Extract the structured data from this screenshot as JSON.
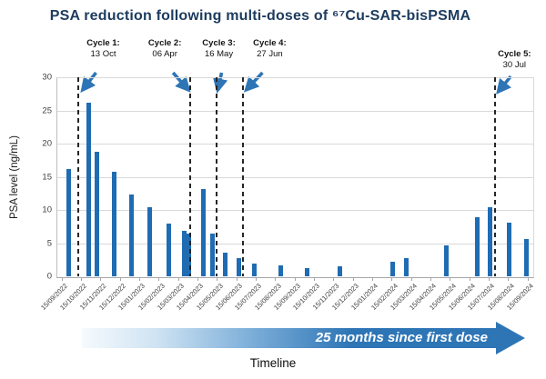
{
  "chart_data": {
    "type": "bar",
    "title": "PSA reduction following multi-doses of ⁶⁷Cu-SAR-bisPSMA",
    "ylabel": "PSA level (ng/mL)",
    "xlabel": "Timeline",
    "banner_text": "25 months since first dose",
    "ylim": [
      0,
      30
    ],
    "yticks": [
      0,
      5,
      10,
      15,
      20,
      25,
      30
    ],
    "grid": true,
    "legend": false,
    "x_axis_note": "x positions are months after first tick 15/09/2022",
    "x_tick_labels": [
      "15/09/2022",
      "15/10/2022",
      "15/11/2022",
      "15/12/2022",
      "15/01/2023",
      "15/02/2023",
      "15/03/2023",
      "15/04/2023",
      "15/05/2023",
      "15/06/2023",
      "15/07/2023",
      "15/08/2023",
      "15/09/2023",
      "15/10/2023",
      "15/11/2023",
      "15/12/2023",
      "15/01/2024",
      "15/02/2024",
      "15/03/2024",
      "15/04/2024",
      "15/05/2024",
      "15/06/2024",
      "15/07/2024",
      "15/08/2024",
      "15/09/2024"
    ],
    "bars": [
      {
        "x_months": 0.37,
        "psa": 16.2
      },
      {
        "x_months": 1.4,
        "psa": 26.2
      },
      {
        "x_months": 1.82,
        "psa": 18.8
      },
      {
        "x_months": 2.71,
        "psa": 15.7
      },
      {
        "x_months": 3.6,
        "psa": 12.3
      },
      {
        "x_months": 4.53,
        "psa": 10.4
      },
      {
        "x_months": 5.51,
        "psa": 7.9
      },
      {
        "x_months": 6.31,
        "psa": 6.8
      },
      {
        "x_months": 6.54,
        "psa": 6.4
      },
      {
        "x_months": 7.29,
        "psa": 13.2
      },
      {
        "x_months": 7.76,
        "psa": 6.5
      },
      {
        "x_months": 8.46,
        "psa": 3.6
      },
      {
        "x_months": 9.16,
        "psa": 2.8
      },
      {
        "x_months": 9.95,
        "psa": 1.9
      },
      {
        "x_months": 11.31,
        "psa": 1.6
      },
      {
        "x_months": 12.66,
        "psa": 1.3
      },
      {
        "x_months": 14.35,
        "psa": 1.5
      },
      {
        "x_months": 17.06,
        "psa": 2.2
      },
      {
        "x_months": 17.76,
        "psa": 2.7
      },
      {
        "x_months": 19.81,
        "psa": 4.6
      },
      {
        "x_months": 21.4,
        "psa": 8.9
      },
      {
        "x_months": 22.06,
        "psa": 10.4
      },
      {
        "x_months": 23.04,
        "psa": 8.1
      },
      {
        "x_months": 23.93,
        "psa": 5.6
      }
    ],
    "doses": [
      {
        "label": "Cycle 1:",
        "date": "13 Oct",
        "x_months": 0.89
      },
      {
        "label": "Cycle 2:",
        "date": "06 Apr",
        "x_months": 6.64
      },
      {
        "label": "Cycle 3:",
        "date": "16 May",
        "x_months": 7.97
      },
      {
        "label": "Cycle 4:",
        "date": "27 Jun",
        "x_months": 9.37
      },
      {
        "label": "Cycle 5:",
        "date": "30 Jul",
        "x_months": 22.35
      }
    ],
    "colors": {
      "bar": "#1f6cb2",
      "accent_arrow": "#2e75b6",
      "title": "#1c3b5e",
      "gridline": "#d9d9d9",
      "axis_text": "#404040",
      "dashed_line": "#262626"
    }
  }
}
